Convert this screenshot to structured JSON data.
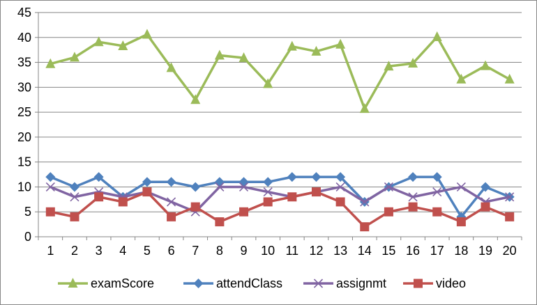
{
  "chart_data": {
    "type": "line",
    "x": [
      1,
      2,
      3,
      4,
      5,
      6,
      7,
      8,
      9,
      10,
      11,
      12,
      13,
      14,
      15,
      16,
      17,
      18,
      19,
      20
    ],
    "ylim": [
      0,
      45
    ],
    "yticks": [
      0,
      5,
      10,
      15,
      20,
      25,
      30,
      35,
      40,
      45
    ],
    "grid": "horizontal",
    "legend": "bottom",
    "series": [
      {
        "name": "examScore",
        "color": "#9BBB59",
        "marker": "triangle",
        "values": [
          34.7,
          36.0,
          39.1,
          38.3,
          40.6,
          33.9,
          27.5,
          36.4,
          35.9,
          30.7,
          38.2,
          37.2,
          38.6,
          25.7,
          34.2,
          34.8,
          40.1,
          31.6,
          34.3,
          31.6
        ]
      },
      {
        "name": "attendClass",
        "color": "#4F81BD",
        "marker": "diamond",
        "values": [
          12,
          10,
          12,
          8,
          11,
          11,
          10,
          11,
          11,
          11,
          12,
          12,
          12,
          7,
          10,
          12,
          12,
          4,
          10,
          8
        ]
      },
      {
        "name": "assignmt",
        "color": "#8064A2",
        "marker": "x",
        "values": [
          10,
          8,
          9,
          8,
          9,
          7,
          5,
          10,
          10,
          9,
          8,
          9,
          10,
          7,
          10,
          8,
          9,
          10,
          7,
          8
        ]
      },
      {
        "name": "video",
        "color": "#C0504D",
        "marker": "square",
        "values": [
          5,
          4,
          8,
          7,
          9,
          4,
          6,
          3,
          5,
          7,
          8,
          9,
          7,
          2,
          5,
          6,
          5,
          3,
          6,
          4
        ]
      }
    ]
  }
}
